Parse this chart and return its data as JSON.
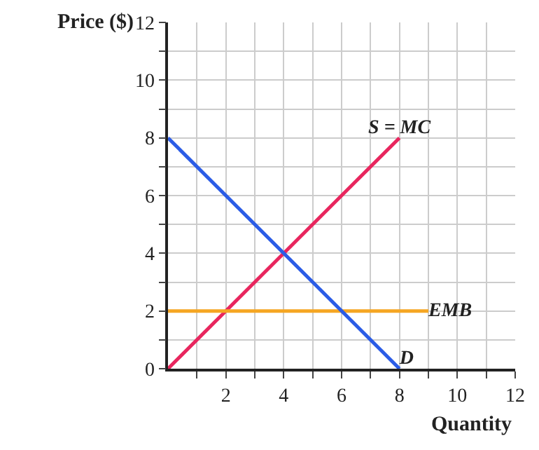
{
  "chart_data": {
    "type": "line",
    "xlabel": "Quantity",
    "ylabel": "Price ($)",
    "legend": false,
    "grid": true,
    "marker": "none",
    "xlim": [
      0,
      12
    ],
    "ylim": [
      0,
      12
    ],
    "xticks": [
      {
        "value": 1,
        "label": null
      },
      2,
      {
        "value": 3,
        "label": null
      },
      4,
      {
        "value": 5,
        "label": null
      },
      6,
      {
        "value": 7,
        "label": null
      },
      8,
      {
        "value": 9,
        "label": null
      },
      10,
      {
        "value": 11,
        "label": null
      },
      12
    ],
    "yticks": [
      0,
      {
        "value": 1,
        "label": null
      },
      2,
      {
        "value": 3,
        "label": null
      },
      4,
      {
        "value": 5,
        "label": null
      },
      6,
      {
        "value": 7,
        "label": null
      },
      8,
      {
        "value": 9,
        "label": null
      },
      10,
      {
        "value": 11,
        "label": null
      },
      12
    ],
    "series": [
      {
        "name": "S = MC",
        "color": "#e8265e",
        "x": [
          0,
          8
        ],
        "values": [
          0,
          8
        ]
      },
      {
        "name": "EMB",
        "color": "#f5a623",
        "x": [
          0,
          9
        ],
        "values": [
          2,
          2
        ]
      },
      {
        "name": "D",
        "color": "#2b5ce6",
        "x": [
          0,
          8
        ],
        "values": [
          8,
          0
        ]
      }
    ]
  }
}
